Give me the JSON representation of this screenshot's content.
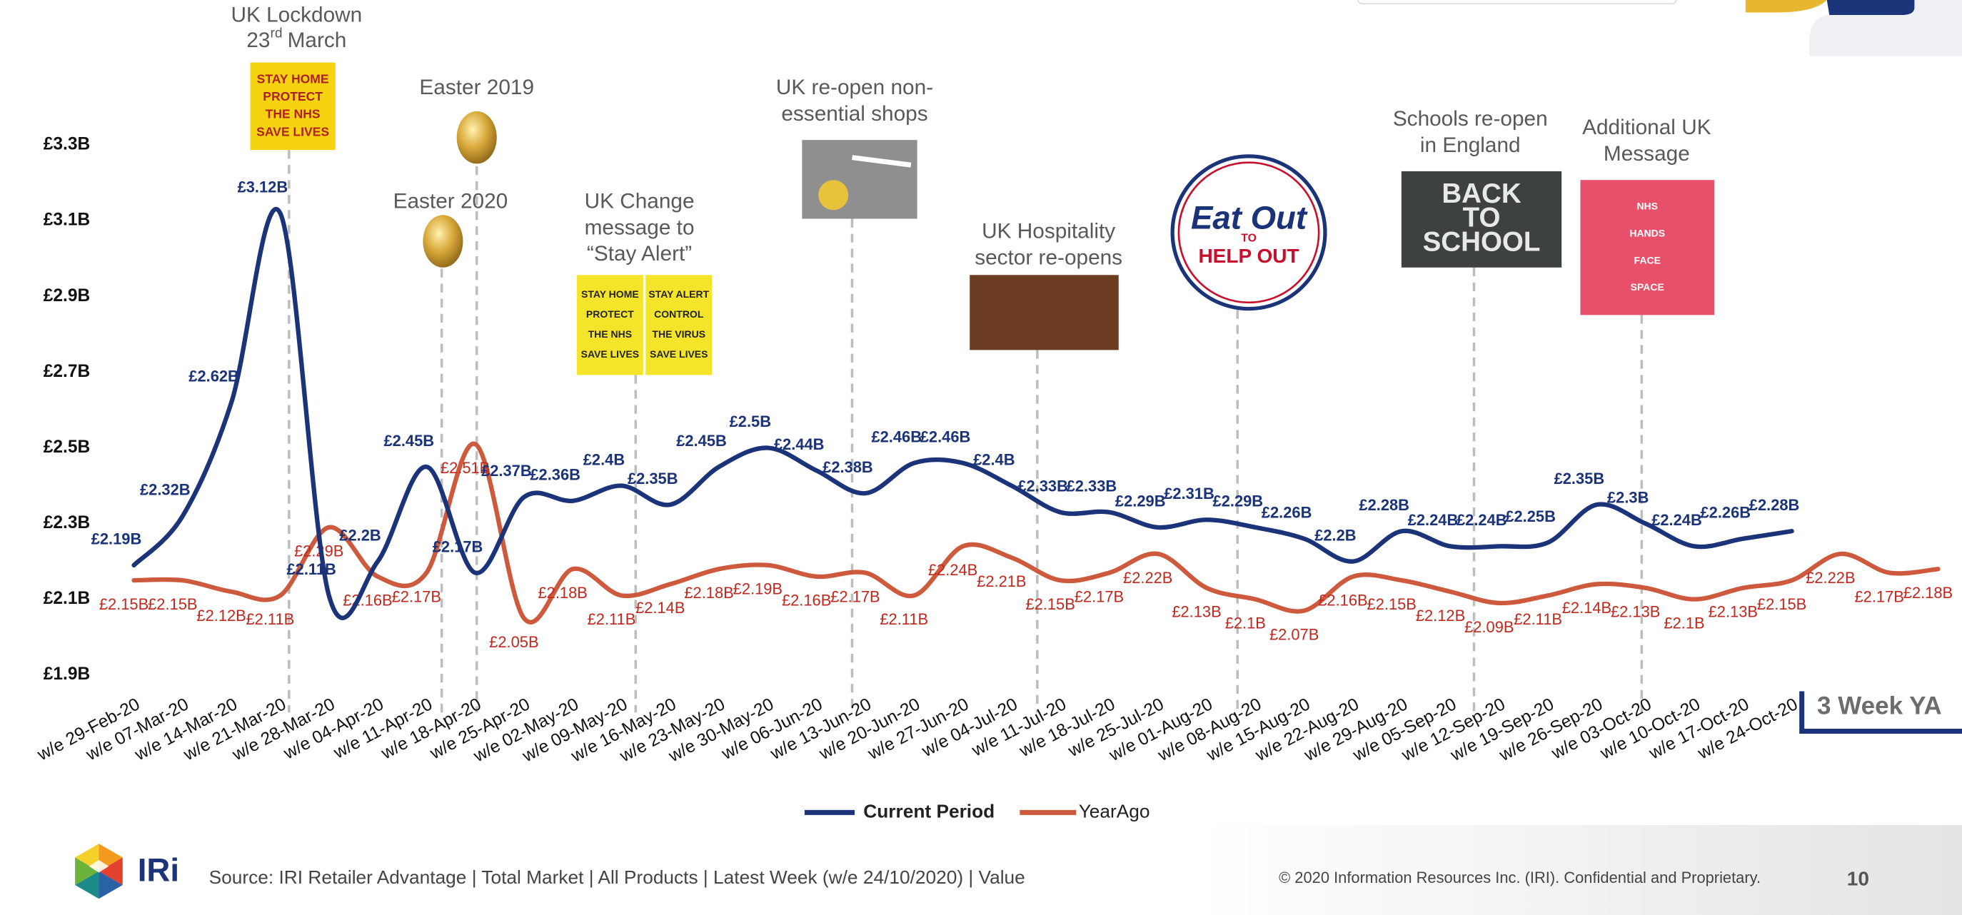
{
  "chart_data": {
    "type": "line",
    "categories": [
      "w/e 29-Feb-20",
      "w/e 07-Mar-20",
      "w/e 14-Mar-20",
      "w/e 21-Mar-20",
      "w/e 28-Mar-20",
      "w/e 04-Apr-20",
      "w/e 11-Apr-20",
      "w/e 18-Apr-20",
      "w/e 25-Apr-20",
      "w/e 02-May-20",
      "w/e 09-May-20",
      "w/e 16-May-20",
      "w/e 23-May-20",
      "w/e 30-May-20",
      "w/e 06-Jun-20",
      "w/e 13-Jun-20",
      "w/e 20-Jun-20",
      "w/e 27-Jun-20",
      "w/e 04-Jul-20",
      "w/e 11-Jul-20",
      "w/e 18-Jul-20",
      "w/e 25-Jul-20",
      "w/e 01-Aug-20",
      "w/e 08-Aug-20",
      "w/e 15-Aug-20",
      "w/e 22-Aug-20",
      "w/e 29-Aug-20",
      "w/e 05-Sep-20",
      "w/e 12-Sep-20",
      "w/e 19-Sep-20",
      "w/e 26-Sep-20",
      "w/e 03-Oct-20",
      "w/e 10-Oct-20",
      "w/e 17-Oct-20",
      "w/e 24-Oct-20",
      null,
      null,
      null
    ],
    "series": [
      {
        "name": "Current Period",
        "color": "#1b3378",
        "values": [
          2.19,
          2.32,
          2.62,
          3.12,
          2.11,
          2.2,
          2.45,
          2.17,
          2.37,
          2.36,
          2.4,
          2.35,
          2.45,
          2.5,
          2.44,
          2.38,
          2.46,
          2.46,
          2.4,
          2.33,
          2.33,
          2.29,
          2.31,
          2.29,
          2.26,
          2.2,
          2.28,
          2.24,
          2.24,
          2.25,
          2.35,
          2.3,
          2.24,
          2.26,
          2.28,
          null,
          null,
          null
        ],
        "value_labels": [
          "£2.19B",
          "£2.32B",
          "£2.62B",
          "£3.12B",
          "£2.11B",
          "£2.2B",
          "£2.45B",
          "£2.17B",
          "£2.37B",
          "£2.36B",
          "£2.4B",
          "£2.35B",
          "£2.45B",
          "£2.5B",
          "£2.44B",
          "£2.38B",
          "£2.46B",
          "£2.46B",
          "£2.4B",
          "£2.33B",
          "£2.33B",
          "£2.29B",
          "£2.31B",
          "£2.29B",
          "£2.26B",
          "£2.2B",
          "£2.28B",
          "£2.24B",
          "£2.24B",
          "£2.25B",
          "£2.35B",
          "£2.3B",
          "£2.24B",
          "£2.26B",
          "£2.28B",
          null,
          null,
          null
        ]
      },
      {
        "name": "YearAgo",
        "color": "#cd5a3c",
        "label_color": "#c0281e",
        "values": [
          2.15,
          2.15,
          2.12,
          2.11,
          2.29,
          2.16,
          2.17,
          2.51,
          2.05,
          2.18,
          2.11,
          2.14,
          2.18,
          2.19,
          2.16,
          2.17,
          2.11,
          2.24,
          2.21,
          2.15,
          2.17,
          2.22,
          2.13,
          2.1,
          2.07,
          2.16,
          2.15,
          2.12,
          2.09,
          2.11,
          2.14,
          2.13,
          2.1,
          2.13,
          2.15,
          2.22,
          2.17,
          2.18
        ],
        "value_labels": [
          "£2.15B",
          "£2.15B",
          "£2.12B",
          "£2.11B",
          "£2.29B",
          "£2.16B",
          "£2.17B",
          "£2.51B",
          "£2.05B",
          "£2.18B",
          "£2.11B",
          "£2.14B",
          "£2.18B",
          "£2.19B",
          "£2.16B",
          "£2.17B",
          "£2.11B",
          "£2.24B",
          "£2.21B",
          "£2.15B",
          "£2.17B",
          "£2.22B",
          "£2.13B",
          "£2.1B",
          "£2.07B",
          "£2.16B",
          "£2.15B",
          "£2.12B",
          "£2.09B",
          "£2.11B",
          "£2.14B",
          "£2.13B",
          "£2.1B",
          "£2.13B",
          "£2.15B",
          "£2.22B",
          "£2.17B",
          "£2.18B"
        ]
      }
    ],
    "ylim": [
      1.9,
      3.3
    ],
    "yticks": [
      {
        "value": 1.9,
        "label": "£1.9B"
      },
      {
        "value": 2.1,
        "label": "£2.1B"
      },
      {
        "value": 2.3,
        "label": "£2.3B"
      },
      {
        "value": 2.5,
        "label": "£2.5B"
      },
      {
        "value": 2.7,
        "label": "£2.7B"
      },
      {
        "value": 2.9,
        "label": "£2.9B"
      },
      {
        "value": 3.1,
        "label": "£3.1B"
      },
      {
        "value": 3.3,
        "label": "£3.3B"
      }
    ],
    "grid": false,
    "legend": "bottom",
    "annotations": [
      {
        "lines": [
          "UK Lockdown"
        ],
        "date": {
          "day": "23",
          "suffix": "rd",
          "month": "March"
        },
        "image_text": [
          [
            "STAY HOME",
            "PROTECT",
            "THE NHS",
            "SAVE LIVES"
          ]
        ]
      },
      {
        "lines": [
          "Easter 2019"
        ]
      },
      {
        "lines": [
          "Easter 2020"
        ]
      },
      {
        "lines": [
          "UK Change",
          "message to",
          "“Stay Alert”"
        ],
        "image_text": [
          [
            "STAY HOME",
            "PROTECT",
            "THE NHS",
            "SAVE LIVES"
          ],
          [
            "STAY ALERT",
            "CONTROL",
            "THE VIRUS",
            "SAVE LIVES"
          ]
        ]
      },
      {
        "lines": [
          "UK re-open non-",
          "essential shops"
        ]
      },
      {
        "lines": [
          "UK Hospitality",
          "sector re-opens"
        ]
      },
      {
        "image_text": [
          [
            "Eat Out",
            "TO",
            "HELP OUT"
          ]
        ]
      },
      {
        "lines": [
          "Schools re-open",
          "in England"
        ],
        "image_text": [
          [
            "BACK",
            "TO",
            "SCHOOL"
          ]
        ]
      },
      {
        "lines": [
          "Additional UK",
          "Message"
        ],
        "image_text": [
          [
            "NHS",
            "HANDS",
            "FACE",
            "SPACE"
          ]
        ]
      }
    ],
    "period_tag": "3 Week YA"
  },
  "footer": {
    "logo": "IRi",
    "source": "Source: IRI Retailer Advantage | Total Market | All Products | Latest Week (w/e 24/10/2020) | Value",
    "copyright": "© 2020 Information Resources Inc. (IRI). Confidential and Proprietary.",
    "page_number": "10"
  }
}
